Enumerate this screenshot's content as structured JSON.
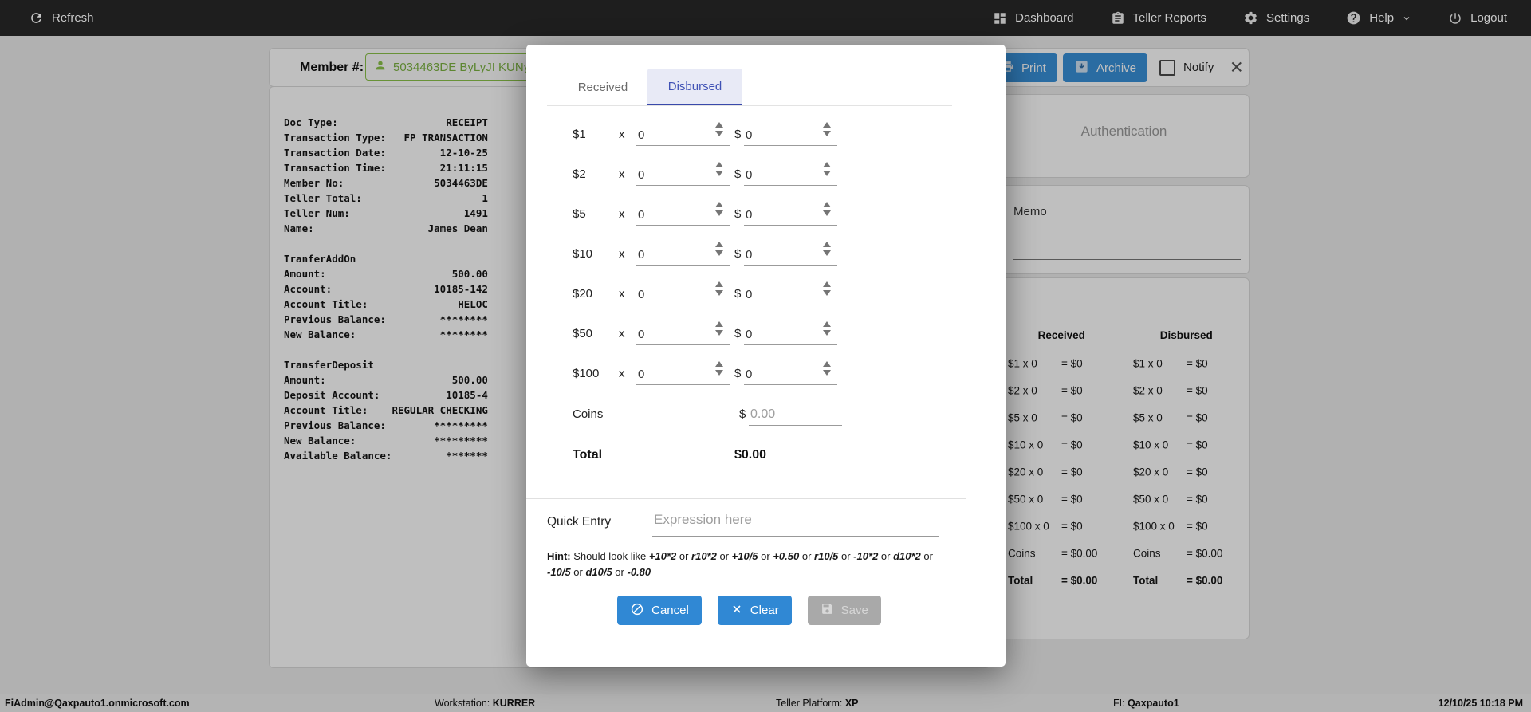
{
  "nav": {
    "refresh": {
      "label": "Refresh",
      "icon": "refresh-icon"
    },
    "items": [
      {
        "label": "Dashboard",
        "icon": "dashboard-icon"
      },
      {
        "label": "Teller Reports",
        "icon": "teller-reports-icon"
      },
      {
        "label": "Settings",
        "icon": "settings-icon"
      },
      {
        "label": "Help",
        "icon": "help-icon"
      },
      {
        "label": "Logout",
        "icon": "logout-icon"
      }
    ]
  },
  "member_bar": {
    "label": "Member #:",
    "member_value": "5034463DE ByLyJI KUNy",
    "member_icon": "person-icon",
    "print_label": "Print",
    "archive_label": "Archive",
    "notify_label": "Notify",
    "notify_checked": false
  },
  "receipt_text": "Doc Type:                  RECEIPT\nTransaction Type:   FP TRANSACTION\nTransaction Date:         12-10-25\nTransaction Time:         21:11:15\nMember No:               5034463DE\nTeller Total:                    1\nTeller Num:                   1491\nName:                   James Dean\n\nTranferAddOn\nAmount:                     500.00\nAccount:                 10185-142\nAccount Title:               HELOC\nPrevious Balance:         ********\nNew Balance:              ********\n\nTransferDeposit\nAmount:                     500.00\nDeposit Account:           10185-4\nAccount Title:    REGULAR CHECKING\nPrevious Balance:        *********\nNew Balance:             *********\nAvailable Balance:         *******",
  "right_panel": {
    "authentication_title": "Authentication",
    "memo_label": "Memo",
    "summary": {
      "received_header": "Received",
      "disbursed_header": "Disbursed",
      "rows": [
        {
          "label": "$1 x 0",
          "received": "= $0",
          "disbursed": "= $0",
          "bold": false
        },
        {
          "label": "$2 x 0",
          "received": "= $0",
          "disbursed": "= $0",
          "bold": false
        },
        {
          "label": "$5 x 0",
          "received": "= $0",
          "disbursed": "= $0",
          "bold": false
        },
        {
          "label": "$10 x 0",
          "received": "= $0",
          "disbursed": "= $0",
          "bold": false
        },
        {
          "label": "$20 x 0",
          "received": "= $0",
          "disbursed": "= $0",
          "bold": false
        },
        {
          "label": "$50 x 0",
          "received": "= $0",
          "disbursed": "= $0",
          "bold": false
        },
        {
          "label": "$100 x 0",
          "received": "= $0",
          "disbursed": "= $0",
          "bold": false
        },
        {
          "label": "Coins",
          "received": "= $0.00",
          "disbursed": "= $0.00",
          "bold": false
        },
        {
          "label": "Total",
          "received": "= $0.00",
          "disbursed": "= $0.00",
          "bold": true
        }
      ]
    }
  },
  "modal": {
    "tabs": [
      "Received",
      "Disbursed"
    ],
    "active_tab": "Disbursed",
    "rows": [
      {
        "label": "$1",
        "mult": "x",
        "count": "0",
        "prefix": "$",
        "amount": "0"
      },
      {
        "label": "$2",
        "mult": "x",
        "count": "0",
        "prefix": "$",
        "amount": "0"
      },
      {
        "label": "$5",
        "mult": "x",
        "count": "0",
        "prefix": "$",
        "amount": "0"
      },
      {
        "label": "$10",
        "mult": "x",
        "count": "0",
        "prefix": "$",
        "amount": "0"
      },
      {
        "label": "$20",
        "mult": "x",
        "count": "0",
        "prefix": "$",
        "amount": "0"
      },
      {
        "label": "$50",
        "mult": "x",
        "count": "0",
        "prefix": "$",
        "amount": "0"
      },
      {
        "label": "$100",
        "mult": "x",
        "count": "0",
        "prefix": "$",
        "amount": "0"
      }
    ],
    "coins": {
      "label": "Coins",
      "prefix": "$",
      "placeholder": "0.00"
    },
    "total": {
      "label": "Total",
      "value": "$0.00"
    },
    "quick_entry": {
      "label": "Quick Entry",
      "placeholder": "Expression here"
    },
    "hint": {
      "label": "Hint:",
      "intro": "Should look like",
      "expressions": [
        "+10*2",
        "r10*2",
        "+10/5",
        "+0.50",
        "r10/5",
        "-10*2",
        "d10*2",
        "-10/5",
        "d10/5",
        "-0.80"
      ],
      "separator": "or"
    },
    "buttons": {
      "cancel": "Cancel",
      "clear": "Clear",
      "save": "Save"
    }
  },
  "status_bar": {
    "user": "FiAdmin@Qaxpauto1.onmicrosoft.com",
    "workstation_label": "Workstation:",
    "workstation": "KURRER",
    "platform_label": "Teller Platform:",
    "platform": "XP",
    "fi_label": "FI:",
    "fi": "Qaxpauto1",
    "datetime": "12/10/25 10:18 PM"
  },
  "colors": {
    "nav_bg": "#1e1e1e",
    "accent_blue": "#3088d4",
    "tab_active_text": "#3f51b5",
    "tab_active_bg": "#e8eaf6",
    "member_green": "#8bc34a",
    "disabled_gray": "#a9a9a9"
  }
}
